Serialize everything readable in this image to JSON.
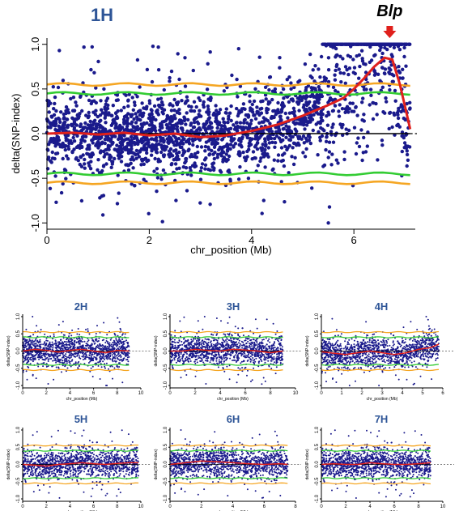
{
  "colors": {
    "points": "#1a1a8c",
    "trend": "#e0201c",
    "threshold_99": "#f5a623",
    "threshold_95": "#33cc33",
    "title": "#2e5597",
    "arrow": "#e0201c"
  },
  "annotation": {
    "label": "Blp",
    "marker": "down-arrow-icon"
  },
  "chart_data": [
    {
      "type": "scatter",
      "title": "1H",
      "xlabel": "chr_position (Mb)",
      "ylabel": "delta(SNP-index)",
      "xlim": [
        0,
        7.2
      ],
      "ylim": [
        -1,
        1
      ],
      "xticks": [
        0,
        2,
        4,
        6
      ],
      "yticks": [
        -1.0,
        -0.5,
        0.0,
        0.5,
        1.0
      ],
      "ytick_labels": [
        "-1.0",
        "-0.5",
        "0.0",
        "0.5",
        "1.0"
      ],
      "thresholds": {
        "upper_99": 0.55,
        "upper_95": 0.45,
        "lower_95": -0.45,
        "lower_99": -0.55
      },
      "trend": {
        "x": [
          0,
          0.5,
          1.0,
          1.5,
          2.0,
          2.5,
          3.0,
          3.5,
          4.0,
          4.5,
          5.0,
          5.5,
          5.8,
          6.0,
          6.2,
          6.4,
          6.6,
          6.75,
          6.9,
          7.0,
          7.1
        ],
        "y": [
          0.0,
          0.01,
          -0.01,
          0.01,
          -0.02,
          0.0,
          -0.04,
          -0.02,
          0.03,
          0.1,
          0.2,
          0.32,
          0.4,
          0.5,
          0.62,
          0.75,
          0.85,
          0.83,
          0.55,
          0.3,
          0.05
        ]
      },
      "annotation_x": 6.7
    },
    {
      "type": "scatter",
      "title": "2H",
      "xlabel": "chr_position (Mb)",
      "ylabel": "delta(SNP-index)",
      "xlim": [
        0,
        10
      ],
      "ylim": [
        -1,
        1
      ],
      "xticks": [
        0,
        2,
        4,
        6,
        8,
        10
      ],
      "yticks": [
        -1.0,
        -0.5,
        0.0,
        0.5,
        1.0
      ],
      "ytick_labels": [
        "-1.0",
        "-0.5",
        "0.0",
        "0.5",
        "1.0"
      ],
      "thresholds": {
        "upper_99": 0.55,
        "upper_95": 0.4,
        "lower_95": -0.4,
        "lower_99": -0.55
      },
      "trend": {
        "x": [
          0,
          1,
          2,
          3,
          4,
          5,
          6,
          7,
          8,
          9
        ],
        "y": [
          0.0,
          0.05,
          0.02,
          -0.03,
          0.02,
          0.05,
          0.0,
          -0.05,
          0.02,
          0.0
        ]
      }
    },
    {
      "type": "scatter",
      "title": "3H",
      "xlabel": "chr_position (Mb)",
      "ylabel": "delta(SNP-index)",
      "xlim": [
        0,
        10
      ],
      "ylim": [
        -1,
        1
      ],
      "xticks": [
        0,
        2,
        4,
        6,
        8,
        10
      ],
      "yticks": [
        -1.0,
        -0.5,
        0.0,
        0.5,
        1.0
      ],
      "ytick_labels": [
        "-1.0",
        "-0.5",
        "0.0",
        "0.5",
        "1.0"
      ],
      "thresholds": {
        "upper_99": 0.55,
        "upper_95": 0.4,
        "lower_95": -0.4,
        "lower_99": -0.55
      },
      "trend": {
        "x": [
          0,
          1,
          2,
          3,
          4,
          5,
          6,
          7,
          8,
          9
        ],
        "y": [
          0.0,
          0.0,
          0.05,
          0.02,
          0.0,
          0.05,
          0.03,
          0.0,
          -0.05,
          0.0
        ]
      }
    },
    {
      "type": "scatter",
      "title": "4H",
      "xlabel": "chr_position (Mb)",
      "ylabel": "delta(SNP-index)",
      "xlim": [
        0,
        6
      ],
      "ylim": [
        -1,
        1
      ],
      "xticks": [
        0,
        1,
        2,
        3,
        4,
        5,
        6
      ],
      "yticks": [
        -1.0,
        -0.5,
        0.0,
        0.5,
        1.0
      ],
      "ytick_labels": [
        "-1.0",
        "-0.5",
        "0.0",
        "0.5",
        "1.0"
      ],
      "thresholds": {
        "upper_99": 0.55,
        "upper_95": 0.4,
        "lower_95": -0.4,
        "lower_99": -0.55
      },
      "trend": {
        "x": [
          0,
          0.6,
          1.2,
          1.8,
          2.4,
          3.0,
          3.6,
          4.2,
          4.8,
          5.4,
          5.8
        ],
        "y": [
          -0.02,
          -0.06,
          -0.1,
          -0.05,
          0.0,
          -0.05,
          -0.1,
          -0.05,
          0.05,
          0.1,
          0.2
        ]
      }
    },
    {
      "type": "scatter",
      "title": "5H",
      "xlabel": "chr_position (Mb)",
      "ylabel": "delta(SNP-index)",
      "xlim": [
        0,
        10
      ],
      "ylim": [
        -1,
        1
      ],
      "xticks": [
        0,
        2,
        4,
        6,
        8,
        10
      ],
      "yticks": [
        -1.0,
        -0.5,
        0.0,
        0.5,
        1.0
      ],
      "ytick_labels": [
        "-1.0",
        "-0.5",
        "0.0",
        "0.5",
        "1.0"
      ],
      "thresholds": {
        "upper_99": 0.55,
        "upper_95": 0.4,
        "lower_95": -0.4,
        "lower_99": -0.55
      },
      "trend": {
        "x": [
          0,
          1,
          2,
          3,
          4,
          5,
          6,
          7,
          8,
          9,
          9.8
        ],
        "y": [
          0.0,
          -0.02,
          -0.05,
          0.0,
          0.02,
          0.05,
          0.02,
          0.0,
          0.03,
          0.05,
          0.05
        ]
      }
    },
    {
      "type": "scatter",
      "title": "6H",
      "xlabel": "chr_position (Mb)",
      "ylabel": "delta(SNP-index)",
      "xlim": [
        0,
        8
      ],
      "ylim": [
        -1,
        1
      ],
      "xticks": [
        0,
        2,
        4,
        6,
        8
      ],
      "yticks": [
        -1.0,
        -0.5,
        0.0,
        0.5,
        1.0
      ],
      "ytick_labels": [
        "-1.0",
        "-0.5",
        "0.0",
        "0.5",
        "1.0"
      ],
      "thresholds": {
        "upper_99": 0.55,
        "upper_95": 0.4,
        "lower_95": -0.4,
        "lower_99": -0.55
      },
      "trend": {
        "x": [
          0,
          1,
          2,
          3,
          4,
          5,
          6,
          7,
          7.5
        ],
        "y": [
          0.0,
          0.05,
          0.1,
          0.08,
          0.05,
          0.02,
          0.0,
          0.02,
          0.0
        ]
      }
    },
    {
      "type": "scatter",
      "title": "7H",
      "xlabel": "chr_position (Mb)",
      "ylabel": "delta(SNP-index)",
      "xlim": [
        0,
        10
      ],
      "ylim": [
        -1,
        1
      ],
      "xticks": [
        0,
        2,
        4,
        6,
        8,
        10
      ],
      "yticks": [
        -1.0,
        -0.5,
        0.0,
        0.5,
        1.0
      ],
      "ytick_labels": [
        "-1.0",
        "-0.5",
        "0.0",
        "0.5",
        "1.0"
      ],
      "thresholds": {
        "upper_99": 0.55,
        "upper_95": 0.4,
        "lower_95": -0.4,
        "lower_99": -0.55
      },
      "trend": {
        "x": [
          0,
          1,
          2,
          3,
          4,
          5,
          6,
          7,
          8,
          9
        ],
        "y": [
          0.0,
          0.02,
          0.0,
          0.0,
          0.05,
          0.02,
          0.0,
          0.0,
          0.02,
          0.05
        ]
      }
    }
  ]
}
